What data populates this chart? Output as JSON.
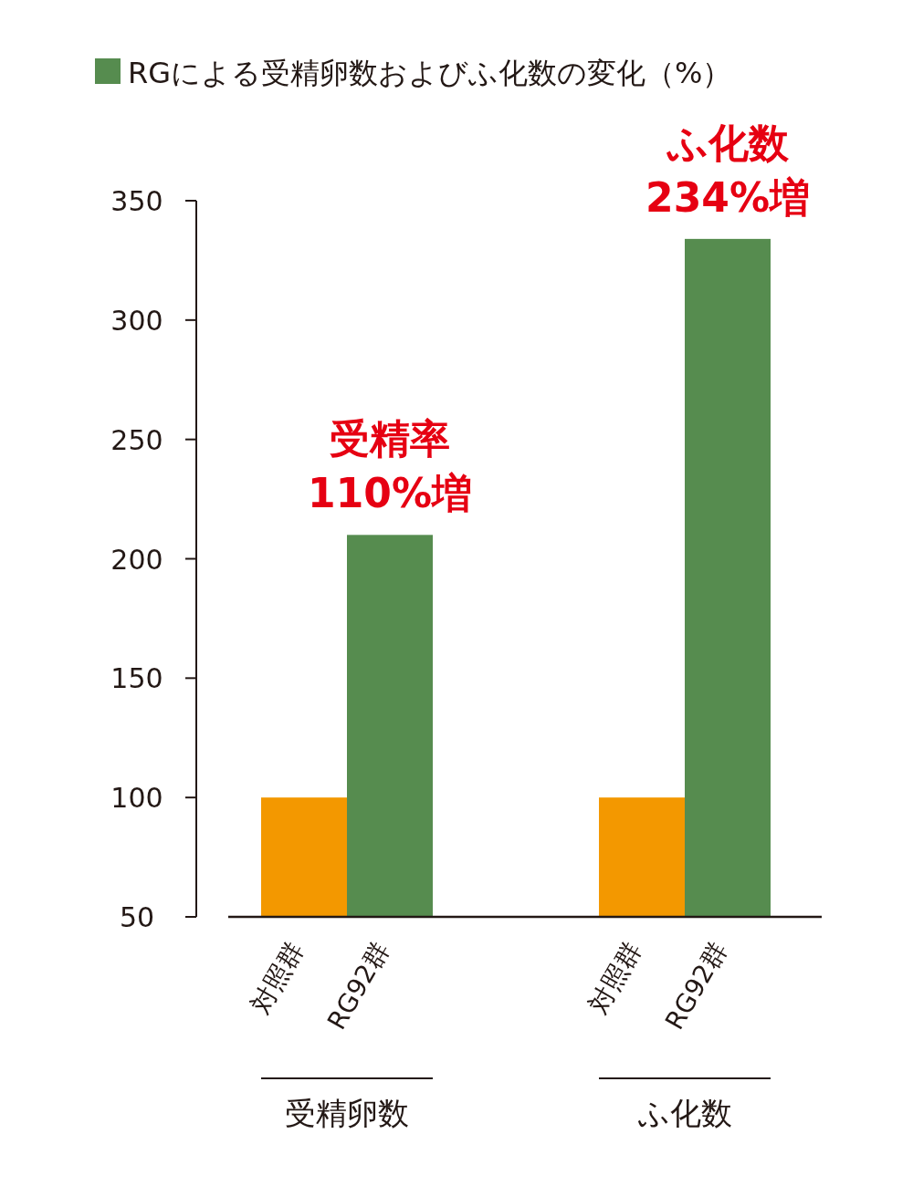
{
  "chart_data": {
    "type": "bar",
    "title": "RGによる受精卵数およびふ化数の変化（%）",
    "categories": [
      "受精卵数",
      "ふ化数"
    ],
    "series": [
      {
        "name": "対照群",
        "color": "#f39800",
        "values": [
          100,
          100
        ]
      },
      {
        "name": "RG92群",
        "color": "#568c4f",
        "values": [
          210,
          334
        ]
      }
    ],
    "ylim": [
      50,
      350
    ],
    "yticks": [
      50,
      100,
      150,
      200,
      250,
      300,
      350
    ],
    "annotations": [
      {
        "text": "受精率\n110%増",
        "x": "受精卵数",
        "y": 210
      },
      {
        "text": "ふ化数\n234%増",
        "x": "ふ化数",
        "y": 334
      }
    ],
    "grid": false,
    "legend": false
  }
}
